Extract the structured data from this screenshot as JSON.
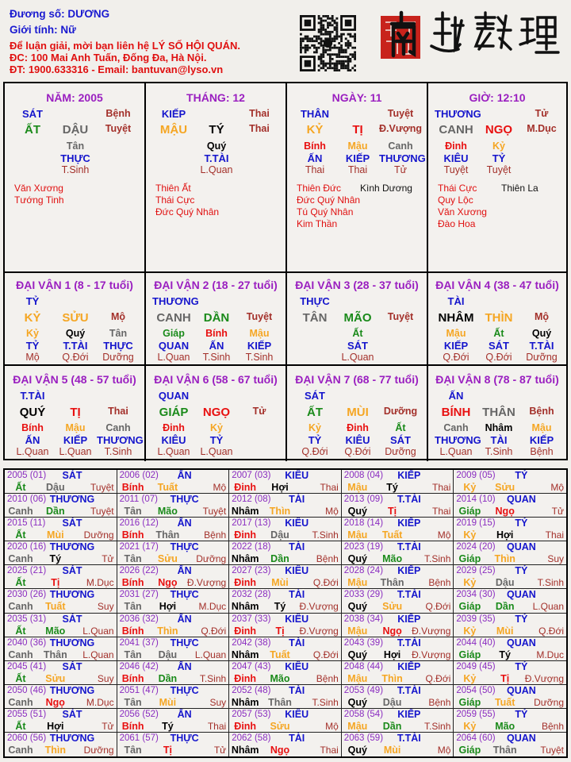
{
  "header": {
    "duong_so": "Đương số: DƯƠNG",
    "gioi_tinh": "Giới tính:   Nữ",
    "contact_1": "Để luận giải, mời bạn liên hệ LÝ SỐ HỘI QUÁN.",
    "contact_2": "ĐC: 100 Mai Anh Tuấn, Đống Đa, Hà Nội.",
    "contact_3": "ĐT: 1900.633316 - Email: bantuvan@lyso.vn",
    "logo_text": "南越數理",
    "qr_icon": "qr-code"
  },
  "colors": {
    "title": "#9a1fc0",
    "god": "#1515cc",
    "phase": "#a3302a",
    "star": "#e01010",
    "wood": "#1a8a1a",
    "fire": "#e81010",
    "earth": "#f5a623",
    "metal": "#666666",
    "water": "#000000"
  },
  "element_of": {
    "giáp": "wood",
    "ất": "wood",
    "dần": "wood",
    "mão": "wood",
    "bính": "fire",
    "đinh": "fire",
    "tị": "fire",
    "ngọ": "fire",
    "mậu": "earth",
    "kỷ": "earth",
    "thìn": "earth",
    "tuất": "earth",
    "sửu": "earth",
    "mùi": "earth",
    "canh": "metal",
    "tân": "metal",
    "thân": "metal",
    "dậu": "metal",
    "nhâm": "water",
    "quý": "water",
    "tý": "water",
    "hợi": "water"
  },
  "pillars": [
    {
      "title": "NĂM: 2005",
      "god": "SÁT",
      "top_phase": "Bệnh",
      "stem": "ẤT",
      "branch": "DẬU",
      "phase": "Tuyệt",
      "hidden": [
        {
          "stem": "Tân",
          "god": "THỰC",
          "phase": "T.Sinh"
        }
      ],
      "stars_left": [
        "Văn Xương",
        "Tướng Tinh"
      ],
      "stars_right": []
    },
    {
      "title": "THÁNG: 12",
      "god": "KIẾP",
      "top_phase": "Thai",
      "stem": "MẬU",
      "branch": "TÝ",
      "phase": "Thai",
      "hidden": [
        {
          "stem": "Quý",
          "god": "T.TÀI",
          "phase": "L.Quan"
        }
      ],
      "stars_left": [
        "Thiên Ất",
        "Thái Cực",
        "Đức Quý Nhân"
      ],
      "stars_right": []
    },
    {
      "title": "NGÀY: 11",
      "god": "THÂN",
      "top_phase": "Tuyệt",
      "stem": "KỶ",
      "branch": "TỊ",
      "phase": "Đ.Vượng",
      "hidden": [
        {
          "stem": "Bính",
          "god": "ẤN",
          "phase": "Thai"
        },
        {
          "stem": "Mậu",
          "god": "KIẾP",
          "phase": "Thai"
        },
        {
          "stem": "Canh",
          "god": "THƯƠNG",
          "phase": "Tử"
        }
      ],
      "stars_left": [
        "Thiên Đức",
        "Đức Quý Nhân",
        "Tú Quý Nhân",
        "Kim Thần"
      ],
      "stars_right": [
        "Kình Dương"
      ]
    },
    {
      "title": "GIỜ: 12:10",
      "god": "THƯƠNG",
      "top_phase": "Tử",
      "stem": "CANH",
      "branch": "NGỌ",
      "phase": "M.Dục",
      "hidden": [
        {
          "stem": "Đinh",
          "god": "KIÊU",
          "phase": "Tuyệt"
        },
        {
          "stem": "Kỷ",
          "god": "TỶ",
          "phase": "Tuyệt"
        }
      ],
      "stars_left": [
        "Thái Cực",
        "Quy Lộc",
        "Văn Xương",
        "Đào Hoa"
      ],
      "stars_right": [
        "Thiên La"
      ]
    }
  ],
  "dai_van": [
    {
      "title": "ĐẠI VẬN 1 (8 - 17 tuổi)",
      "god": "TỶ",
      "stem": "KỶ",
      "branch": "SỬU",
      "phase": "Mộ",
      "hidden": [
        {
          "stem": "Kỷ",
          "god": "TỶ",
          "phase": "Mộ"
        },
        {
          "stem": "Quý",
          "god": "T.TÀI",
          "phase": "Q.Đới"
        },
        {
          "stem": "Tân",
          "god": "THỰC",
          "phase": "Dưỡng"
        }
      ]
    },
    {
      "title": "ĐẠI VẬN 2 (18 - 27 tuổi)",
      "god": "THƯƠNG",
      "stem": "CANH",
      "branch": "DẦN",
      "phase": "Tuyệt",
      "hidden": [
        {
          "stem": "Giáp",
          "god": "QUAN",
          "phase": "L.Quan"
        },
        {
          "stem": "Bính",
          "god": "ẤN",
          "phase": "T.Sinh"
        },
        {
          "stem": "Mậu",
          "god": "KIẾP",
          "phase": "T.Sinh"
        }
      ]
    },
    {
      "title": "ĐẠI VẬN 3 (28 - 37 tuổi)",
      "god": "THỰC",
      "stem": "TÂN",
      "branch": "MÃO",
      "phase": "Tuyệt",
      "hidden": [
        {
          "stem": "Ất",
          "god": "SÁT",
          "phase": "L.Quan"
        }
      ]
    },
    {
      "title": "ĐẠI VẬN 4 (38 - 47 tuổi)",
      "god": "TÀI",
      "stem": "NHÂM",
      "branch": "THÌN",
      "phase": "Mộ",
      "hidden": [
        {
          "stem": "Mậu",
          "god": "KIẾP",
          "phase": "Q.Đới"
        },
        {
          "stem": "Ất",
          "god": "SÁT",
          "phase": "Q.Đới"
        },
        {
          "stem": "Quý",
          "god": "T.TÀI",
          "phase": "Dưỡng"
        }
      ]
    },
    {
      "title": "ĐẠI VẬN 5 (48 - 57 tuổi)",
      "god": "T.TÀI",
      "stem": "QUÝ",
      "branch": "TỊ",
      "phase": "Thai",
      "hidden": [
        {
          "stem": "Bính",
          "god": "ẤN",
          "phase": "L.Quan"
        },
        {
          "stem": "Mậu",
          "god": "KIẾP",
          "phase": "L.Quan"
        },
        {
          "stem": "Canh",
          "god": "THƯƠNG",
          "phase": "T.Sinh"
        }
      ]
    },
    {
      "title": "ĐẠI VẬN 6 (58 - 67 tuổi)",
      "god": "QUAN",
      "stem": "GIÁP",
      "branch": "NGỌ",
      "phase": "Tử",
      "hidden": [
        {
          "stem": "Đinh",
          "god": "KIÊU",
          "phase": "L.Quan"
        },
        {
          "stem": "Kỷ",
          "god": "TỶ",
          "phase": "L.Quan"
        }
      ]
    },
    {
      "title": "ĐẠI VẬN 7 (68 - 77 tuổi)",
      "god": "SÁT",
      "stem": "ẤT",
      "branch": "MÙI",
      "phase": "Dưỡng",
      "hidden": [
        {
          "stem": "Kỷ",
          "god": "TỶ",
          "phase": "Q.Đới"
        },
        {
          "stem": "Đinh",
          "god": "KIÊU",
          "phase": "Q.Đới"
        },
        {
          "stem": "Ất",
          "god": "SÁT",
          "phase": "Dưỡng"
        }
      ]
    },
    {
      "title": "ĐẠI VẬN 8 (78 - 87 tuổi)",
      "god": "ẤN",
      "stem": "BÍNH",
      "branch": "THÂN",
      "phase": "Bệnh",
      "hidden": [
        {
          "stem": "Canh",
          "god": "THƯƠNG",
          "phase": "L.Quan"
        },
        {
          "stem": "Nhâm",
          "god": "TÀI",
          "phase": "T.Sinh"
        },
        {
          "stem": "Mậu",
          "god": "KIẾP",
          "phase": "Bệnh"
        }
      ]
    }
  ],
  "years": [
    [
      "2005 (01)",
      "SÁT",
      "Ất",
      "Dậu",
      "Tuyệt"
    ],
    [
      "2006 (02)",
      "ẤN",
      "Bính",
      "Tuất",
      "Mộ"
    ],
    [
      "2007 (03)",
      "KIÊU",
      "Đinh",
      "Hợi",
      "Thai"
    ],
    [
      "2008 (04)",
      "KIẾP",
      "Mậu",
      "Tý",
      "Thai"
    ],
    [
      "2009 (05)",
      "TỶ",
      "Kỷ",
      "Sửu",
      "Mộ"
    ],
    [
      "2010 (06)",
      "THƯƠNG",
      "Canh",
      "Dần",
      "Tuyệt"
    ],
    [
      "2011 (07)",
      "THỰC",
      "Tân",
      "Mão",
      "Tuyệt"
    ],
    [
      "2012 (08)",
      "TÀI",
      "Nhâm",
      "Thìn",
      "Mộ"
    ],
    [
      "2013 (09)",
      "T.TÀI",
      "Quý",
      "Tị",
      "Thai"
    ],
    [
      "2014 (10)",
      "QUAN",
      "Giáp",
      "Ngọ",
      "Tử"
    ],
    [
      "2015 (11)",
      "SÁT",
      "Ất",
      "Mùi",
      "Dưỡng"
    ],
    [
      "2016 (12)",
      "ẤN",
      "Bính",
      "Thân",
      "Bệnh"
    ],
    [
      "2017 (13)",
      "KIÊU",
      "Đinh",
      "Dậu",
      "T.Sinh"
    ],
    [
      "2018 (14)",
      "KIẾP",
      "Mậu",
      "Tuất",
      "Mộ"
    ],
    [
      "2019 (15)",
      "TỶ",
      "Kỷ",
      "Hợi",
      "Thai"
    ],
    [
      "2020 (16)",
      "THƯƠNG",
      "Canh",
      "Tý",
      "Tử"
    ],
    [
      "2021 (17)",
      "THỰC",
      "Tân",
      "Sửu",
      "Dưỡng"
    ],
    [
      "2022 (18)",
      "TÀI",
      "Nhâm",
      "Dần",
      "Bệnh"
    ],
    [
      "2023 (19)",
      "T.TÀI",
      "Quý",
      "Mão",
      "T.Sinh"
    ],
    [
      "2024 (20)",
      "QUAN",
      "Giáp",
      "Thìn",
      "Suy"
    ],
    [
      "2025 (21)",
      "SÁT",
      "Ất",
      "Tị",
      "M.Dục"
    ],
    [
      "2026 (22)",
      "ẤN",
      "Bính",
      "Ngọ",
      "Đ.Vượng"
    ],
    [
      "2027 (23)",
      "KIÊU",
      "Đinh",
      "Mùi",
      "Q.Đới"
    ],
    [
      "2028 (24)",
      "KIẾP",
      "Mậu",
      "Thân",
      "Bệnh"
    ],
    [
      "2029 (25)",
      "TỶ",
      "Kỷ",
      "Dậu",
      "T.Sinh"
    ],
    [
      "2030 (26)",
      "THƯƠNG",
      "Canh",
      "Tuất",
      "Suy"
    ],
    [
      "2031 (27)",
      "THỰC",
      "Tân",
      "Hợi",
      "M.Dục"
    ],
    [
      "2032 (28)",
      "TÀI",
      "Nhâm",
      "Tý",
      "Đ.Vượng"
    ],
    [
      "2033 (29)",
      "T.TÀI",
      "Quý",
      "Sửu",
      "Q.Đới"
    ],
    [
      "2034 (30)",
      "QUAN",
      "Giáp",
      "Dần",
      "L.Quan"
    ],
    [
      "2035 (31)",
      "SÁT",
      "Ất",
      "Mão",
      "L.Quan"
    ],
    [
      "2036 (32)",
      "ẤN",
      "Bính",
      "Thìn",
      "Q.Đới"
    ],
    [
      "2037 (33)",
      "KIÊU",
      "Đinh",
      "Tị",
      "Đ.Vượng"
    ],
    [
      "2038 (34)",
      "KIẾP",
      "Mậu",
      "Ngọ",
      "Đ.Vượng"
    ],
    [
      "2039 (35)",
      "TỶ",
      "Kỷ",
      "Mùi",
      "Q.Đới"
    ],
    [
      "2040 (36)",
      "THƯƠNG",
      "Canh",
      "Thân",
      "L.Quan"
    ],
    [
      "2041 (37)",
      "THỰC",
      "Tân",
      "Dậu",
      "L.Quan"
    ],
    [
      "2042 (38)",
      "TÀI",
      "Nhâm",
      "Tuất",
      "Q.Đới"
    ],
    [
      "2043 (39)",
      "T.TÀI",
      "Quý",
      "Hợi",
      "Đ.Vượng"
    ],
    [
      "2044 (40)",
      "QUAN",
      "Giáp",
      "Tý",
      "M.Dục"
    ],
    [
      "2045 (41)",
      "SÁT",
      "Ất",
      "Sửu",
      "Suy"
    ],
    [
      "2046 (42)",
      "ẤN",
      "Bính",
      "Dần",
      "T.Sinh"
    ],
    [
      "2047 (43)",
      "KIÊU",
      "Đinh",
      "Mão",
      "Bệnh"
    ],
    [
      "2048 (44)",
      "KIẾP",
      "Mậu",
      "Thìn",
      "Q.Đới"
    ],
    [
      "2049 (45)",
      "TỶ",
      "Kỷ",
      "Tị",
      "Đ.Vượng"
    ],
    [
      "2050 (46)",
      "THƯƠNG",
      "Canh",
      "Ngọ",
      "M.Dục"
    ],
    [
      "2051 (47)",
      "THỰC",
      "Tân",
      "Mùi",
      "Suy"
    ],
    [
      "2052 (48)",
      "TÀI",
      "Nhâm",
      "Thân",
      "T.Sinh"
    ],
    [
      "2053 (49)",
      "T.TÀI",
      "Quý",
      "Dậu",
      "Bệnh"
    ],
    [
      "2054 (50)",
      "QUAN",
      "Giáp",
      "Tuất",
      "Dưỡng"
    ],
    [
      "2055 (51)",
      "SÁT",
      "Ất",
      "Hợi",
      "Tử"
    ],
    [
      "2056 (52)",
      "ẤN",
      "Bính",
      "Tý",
      "Thai"
    ],
    [
      "2057 (53)",
      "KIÊU",
      "Đinh",
      "Sửu",
      "Mộ"
    ],
    [
      "2058 (54)",
      "KIẾP",
      "Mậu",
      "Dần",
      "T.Sinh"
    ],
    [
      "2059 (55)",
      "TỶ",
      "Kỷ",
      "Mão",
      "Bệnh"
    ],
    [
      "2060 (56)",
      "THƯƠNG",
      "Canh",
      "Thìn",
      "Dưỡng"
    ],
    [
      "2061 (57)",
      "THỰC",
      "Tân",
      "Tị",
      "Tử"
    ],
    [
      "2062 (58)",
      "TÀI",
      "Nhâm",
      "Ngọ",
      "Thai"
    ],
    [
      "2063 (59)",
      "T.TÀI",
      "Quý",
      "Mùi",
      "Mộ"
    ],
    [
      "2064 (60)",
      "QUAN",
      "Giáp",
      "Thân",
      "Tuyệt"
    ]
  ]
}
